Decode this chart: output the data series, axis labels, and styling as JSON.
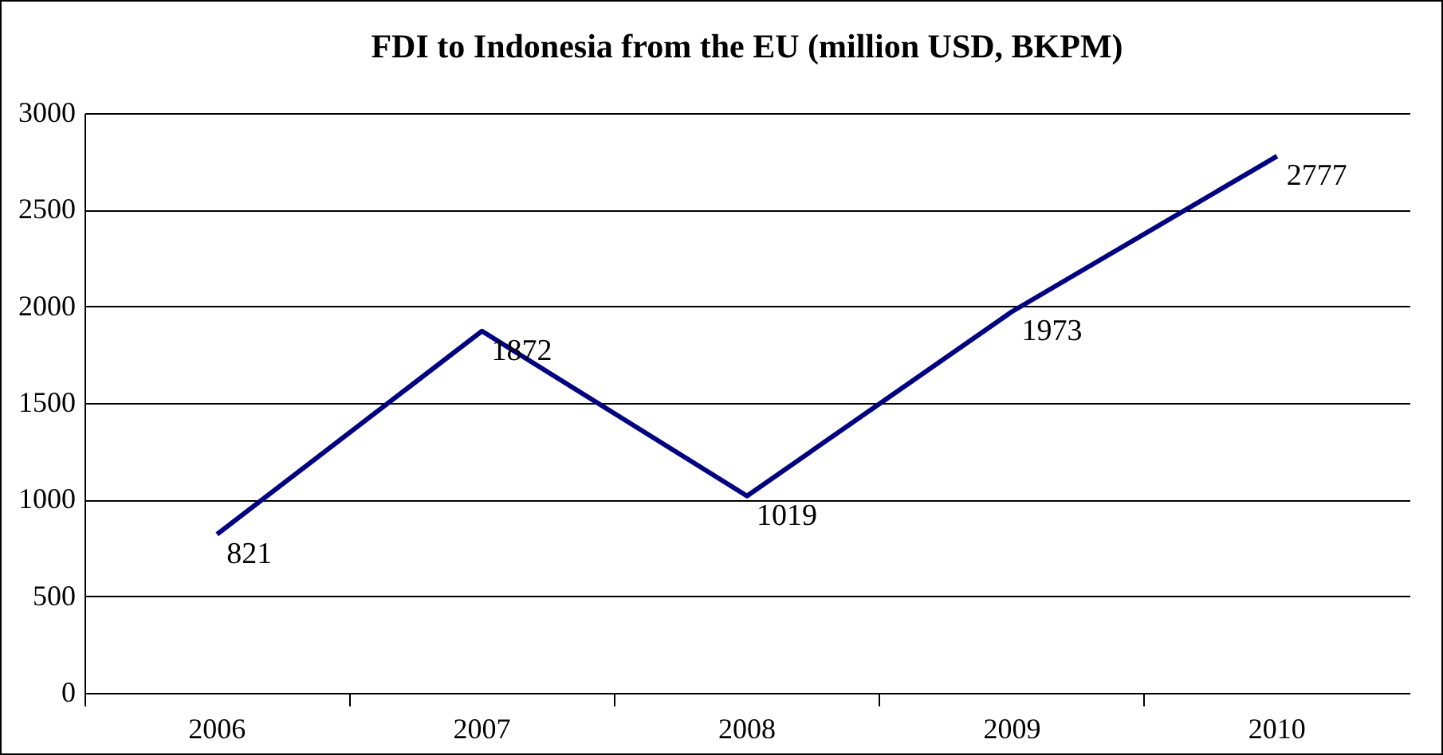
{
  "chart_data": {
    "type": "line",
    "title": "FDI to Indonesia from the EU (million USD, BKPM)",
    "categories": [
      "2006",
      "2007",
      "2008",
      "2009",
      "2010"
    ],
    "series": [
      {
        "color": "#000080",
        "values": [
          821,
          1872,
          1019,
          1973,
          2777
        ]
      }
    ],
    "ylim": [
      0,
      3000
    ],
    "yticks": [
      0,
      500,
      1000,
      1500,
      2000,
      2500,
      3000
    ],
    "grid": "y",
    "data_labels": true
  }
}
